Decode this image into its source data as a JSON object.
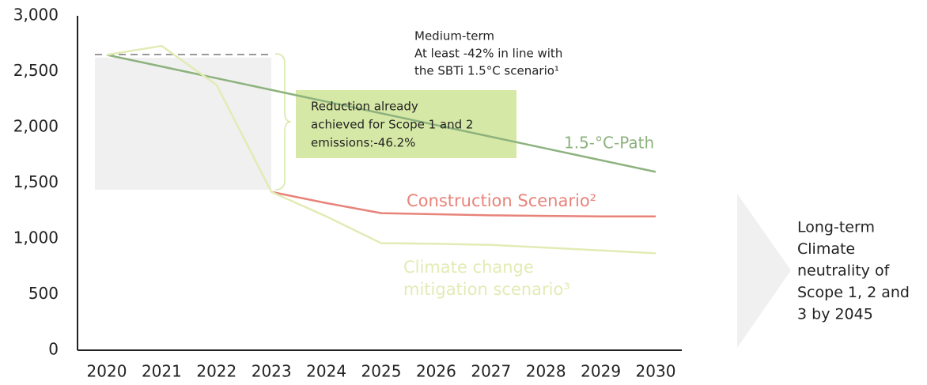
{
  "chart_data": {
    "type": "line",
    "categories": [
      "2020",
      "2021",
      "2022",
      "2023",
      "2024",
      "2025",
      "2026",
      "2027",
      "2028",
      "2029",
      "2030"
    ],
    "series": [
      {
        "name": "1.5-°C-Path",
        "color": "#8db27e",
        "values": [
          2650,
          2545,
          2440,
          2335,
          2230,
          2125,
          2020,
          1915,
          1810,
          1705,
          1600
        ]
      },
      {
        "name": "Construction Scenario²",
        "color": "#e8837a",
        "values": [
          null,
          null,
          null,
          1420,
          1320,
          1230,
          1220,
          1210,
          1205,
          1200,
          1200
        ]
      },
      {
        "name": "Climate change mitigation scenario³",
        "color": "#e3ebb5",
        "values": [
          2650,
          2730,
          2380,
          1420,
          1200,
          960,
          955,
          945,
          920,
          895,
          870
        ]
      }
    ],
    "ylim": [
      0,
      3000
    ],
    "yticks": [
      0,
      500,
      {
        "value": 1000,
        "label": "1,000"
      },
      {
        "value": 1500,
        "label": "1,500"
      },
      {
        "value": 2000,
        "label": "2,000"
      },
      {
        "value": 2500,
        "label": "2,500"
      },
      {
        "value": 3000,
        "label": "3,000"
      }
    ],
    "annotations": {
      "medium_term": [
        "Medium-term",
        "At least -42% in line with",
        "the SBTi 1.5°C scenario¹"
      ],
      "reduction": [
        "Reduction already",
        "achieved for Scope 1 and 2",
        "emissions:-46.2%"
      ],
      "long_term": [
        "Long-term",
        "Climate",
        "neutrality of",
        "Scope 1, 2 and",
        "3 by 2045"
      ]
    }
  }
}
